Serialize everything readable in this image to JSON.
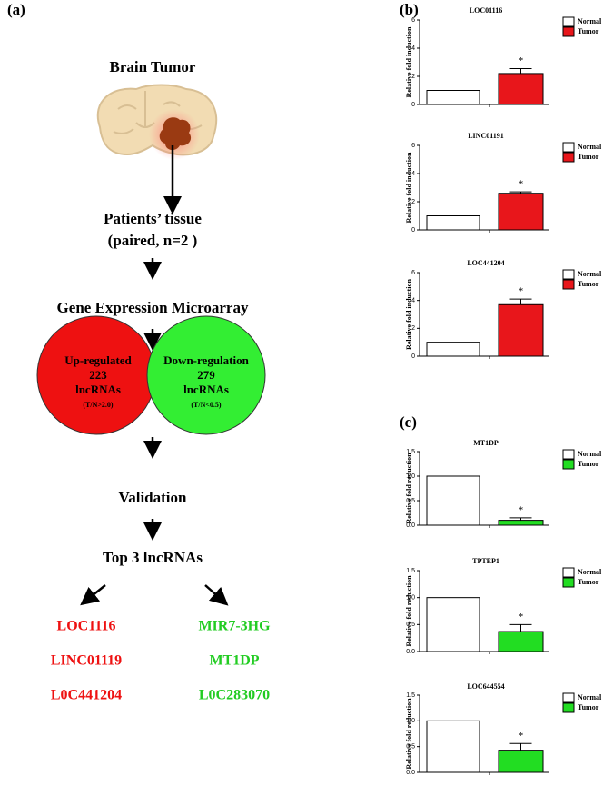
{
  "panel_labels": [
    "(a)",
    "(b)",
    "(c)"
  ],
  "diagram": {
    "title": "Brain Tumor",
    "tissue": "Patients’ tissue",
    "paired": "(paired, n=2 )",
    "microarray": "Gene Expression Microarray",
    "up": {
      "line1": "Up-regulated",
      "count": "223",
      "kind": "lncRNAs",
      "criterion": "(T/N>2.0)"
    },
    "down": {
      "line1": "Down-regulation",
      "count": "279",
      "kind": "lncRNAs",
      "criterion": "(T/N<0.5)"
    },
    "validation": "Validation",
    "top": "Top 3 lncRNAs",
    "up_genes": [
      "LOC1116",
      "LINC01119",
      "L0C441204"
    ],
    "down_genes": [
      "MIR7-3HG",
      "MT1DP",
      "L0C283070"
    ]
  },
  "chart_data": [
    {
      "type": "bar",
      "title": "LOC01116",
      "ylabel": "Relative fold induction",
      "annotation": "*",
      "ylim": [
        0,
        6
      ],
      "yticks": [
        0,
        2,
        4,
        6
      ],
      "series": [
        {
          "name": "Normal",
          "color": "#ffffff",
          "values": [
            1
          ]
        },
        {
          "name": "Tumor",
          "color": "#e8161b",
          "values": [
            2.2
          ],
          "errors": [
            0.35
          ]
        }
      ]
    },
    {
      "type": "bar",
      "title": "LINC01191",
      "ylabel": "Relative fold induction",
      "annotation": "*",
      "ylim": [
        0,
        6
      ],
      "yticks": [
        0,
        2,
        4,
        6
      ],
      "series": [
        {
          "name": "Normal",
          "color": "#ffffff",
          "values": [
            1
          ]
        },
        {
          "name": "Tumor",
          "color": "#e8161b",
          "values": [
            2.6
          ],
          "errors": [
            0.1
          ]
        }
      ]
    },
    {
      "type": "bar",
      "title": "LOC441204",
      "ylabel": "Relative fold induction",
      "annotation": "*",
      "ylim": [
        0,
        6
      ],
      "yticks": [
        0,
        2,
        4,
        6
      ],
      "series": [
        {
          "name": "Normal",
          "color": "#ffffff",
          "values": [
            1
          ]
        },
        {
          "name": "Tumor",
          "color": "#e8161b",
          "values": [
            3.7
          ],
          "errors": [
            0.4
          ]
        }
      ]
    },
    {
      "type": "bar",
      "title": "MT1DP",
      "ylabel": "Relative fold reduction",
      "annotation": "*",
      "ylim": [
        0,
        1.5
      ],
      "yticks": [
        {
          "value": 0,
          "label": "0.0"
        },
        0.5,
        {
          "value": 1,
          "label": "1.0"
        },
        1.5
      ],
      "series": [
        {
          "name": "Normal",
          "color": "#ffffff",
          "values": [
            1
          ]
        },
        {
          "name": "Tumor",
          "color": "#22dd22",
          "values": [
            0.1
          ],
          "errors": [
            0.05
          ]
        }
      ]
    },
    {
      "type": "bar",
      "title": "TPTEP1",
      "ylabel": "Relative fold reduction",
      "annotation": "*",
      "ylim": [
        0,
        1.5
      ],
      "yticks": [
        {
          "value": 0,
          "label": "0.0"
        },
        0.5,
        {
          "value": 1,
          "label": "1.0"
        },
        1.5
      ],
      "series": [
        {
          "name": "Normal",
          "color": "#ffffff",
          "values": [
            1
          ]
        },
        {
          "name": "Tumor",
          "color": "#22dd22",
          "values": [
            0.37
          ],
          "errors": [
            0.13
          ]
        }
      ]
    },
    {
      "type": "bar",
      "title": "LOC644554",
      "ylabel": "Relative fold reduction",
      "annotation": "*",
      "ylim": [
        0,
        1.5
      ],
      "yticks": [
        {
          "value": 0,
          "label": "0.0"
        },
        0.5,
        {
          "value": 1,
          "label": "1.0"
        },
        1.5
      ],
      "series": [
        {
          "name": "Normal",
          "color": "#ffffff",
          "values": [
            1
          ]
        },
        {
          "name": "Tumor",
          "color": "#22dd22",
          "values": [
            0.43
          ],
          "errors": [
            0.13
          ]
        }
      ]
    }
  ]
}
